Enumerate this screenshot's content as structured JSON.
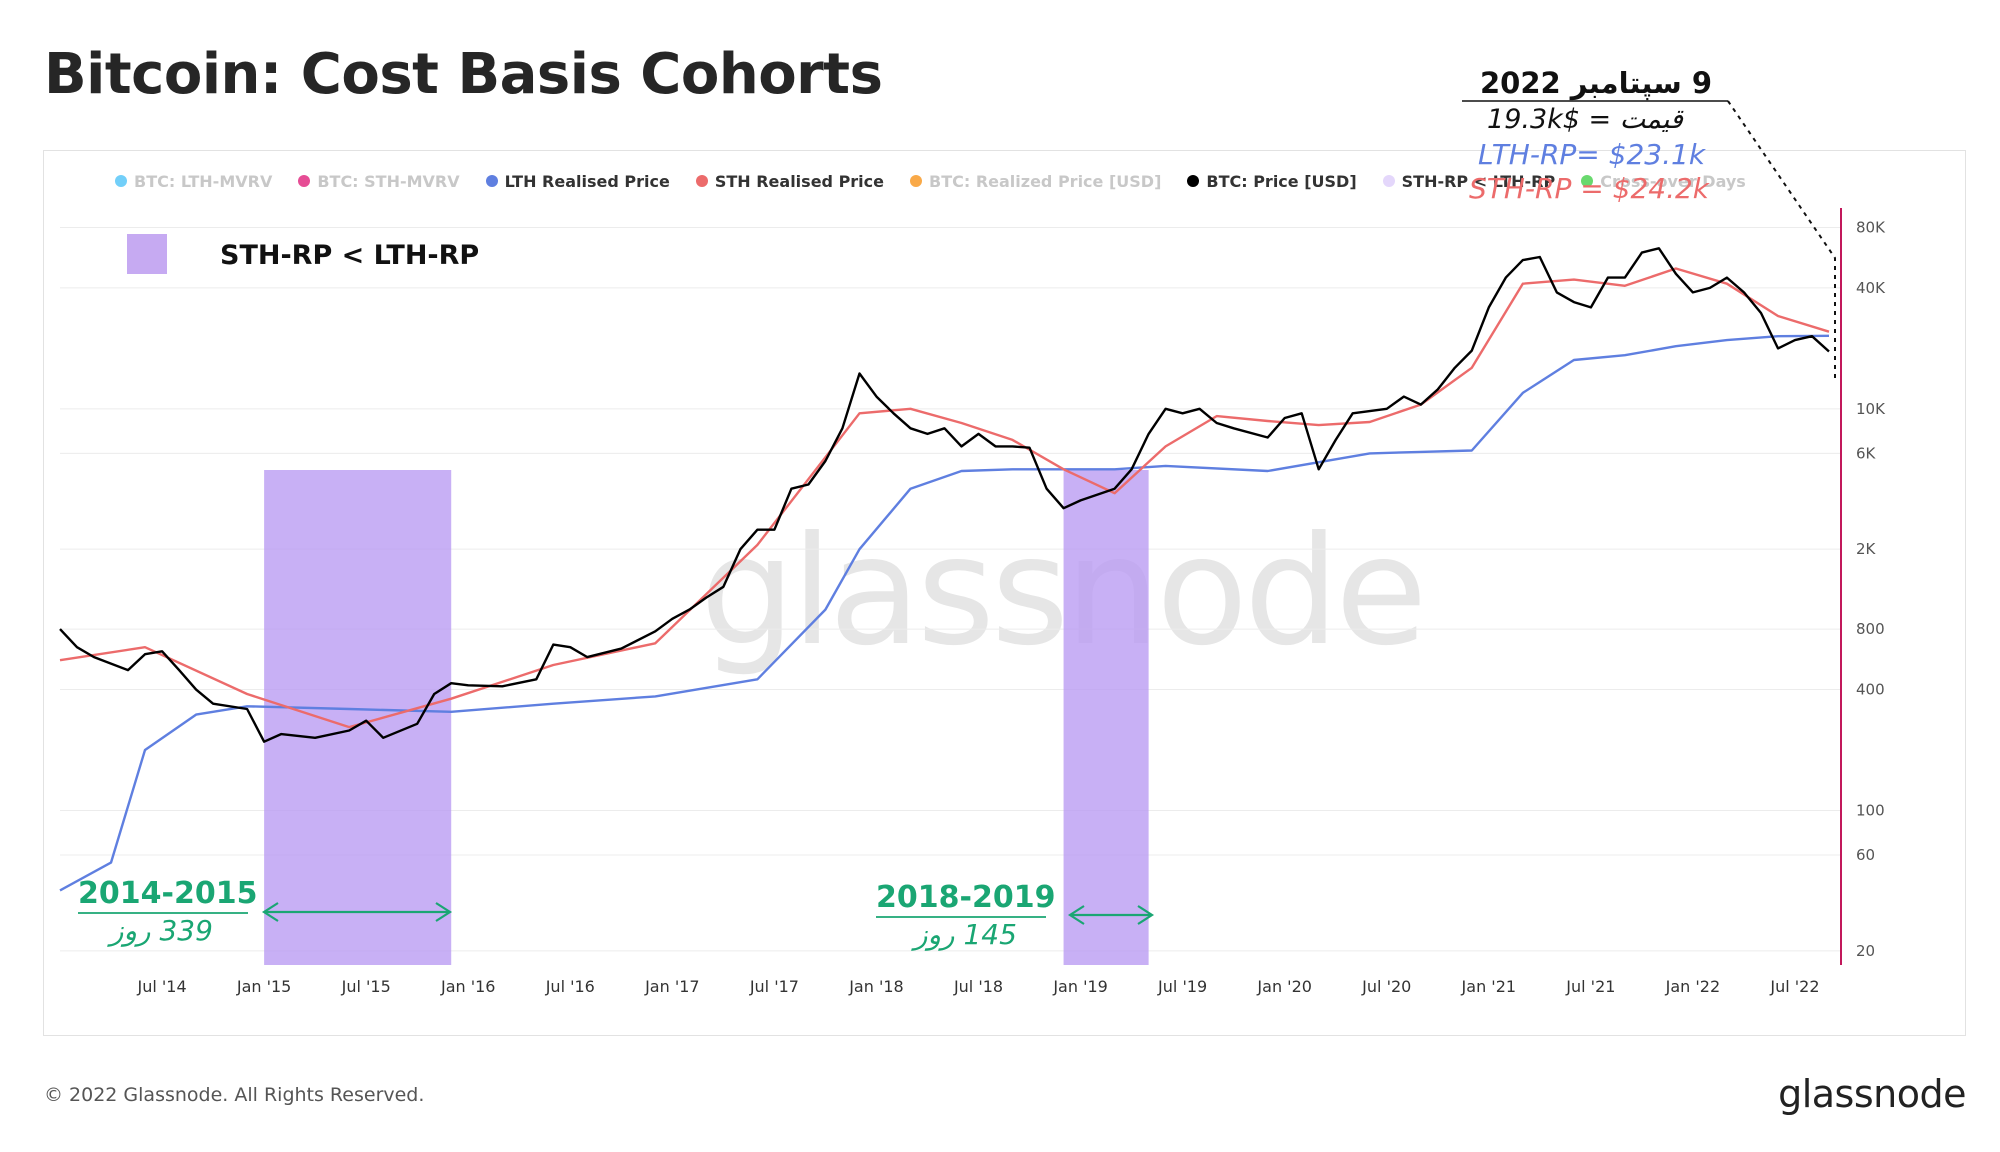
{
  "title": "Bitcoin: Cost Basis Cohorts",
  "legend": [
    {
      "label": "BTC: LTH-MVRV",
      "color": "#4fc3f7",
      "faded": true
    },
    {
      "label": "BTC: STH-MVRV",
      "color": "#e0207a",
      "faded": true
    },
    {
      "label": "LTH Realised Price",
      "color": "#5f7fe0",
      "faded": false
    },
    {
      "label": "STH Realised Price",
      "color": "#ec6b6b",
      "faded": false
    },
    {
      "label": "BTC: Realized Price [USD]",
      "color": "#f7931a",
      "faded": true
    },
    {
      "label": "BTC: Price [USD]",
      "color": "#000000",
      "faded": false
    },
    {
      "label": "STH-RP < LTH-RP",
      "color": "#e4d7fb",
      "faded": false
    },
    {
      "label": "Cross-over Days",
      "color": "#44d04a",
      "faded": true
    }
  ],
  "inline_legend_label": "STH-RP < LTH-RP",
  "annotations": {
    "date_label": "9 سپتامبر 2022",
    "price_label": "قیمت = $19.3k",
    "lth_label": "LTH-RP= $23.1k",
    "sth_label": "STH-RP = $24.2k",
    "period1_title": "2014-2015",
    "period1_days": "339 روز",
    "period2_title": "2018-2019",
    "period2_days": "145 روز"
  },
  "watermark": "glassnode",
  "footer": "© 2022 Glassnode. All Rights Reserved.",
  "brand": "glassnode",
  "colors": {
    "price": "#000000",
    "lth": "#5f7fe0",
    "sth": "#ec6b6b",
    "shade": "#b99af2",
    "period_text": "#1aa673",
    "right_axis": "#c2185b"
  },
  "chart_data": {
    "type": "line",
    "yscale": "log",
    "ylim": [
      17,
      100000
    ],
    "y_ticks": [
      20,
      60,
      100,
      400,
      800,
      2000,
      6000,
      10000,
      40000,
      80000
    ],
    "y_tick_labels": [
      "20",
      "60",
      "100",
      "400",
      "800",
      "2K",
      "6K",
      "10K",
      "40K",
      "80K"
    ],
    "x_range": [
      "2014-01",
      "2022-09"
    ],
    "x_ticks": [
      "2014-07",
      "2015-01",
      "2015-07",
      "2016-01",
      "2016-07",
      "2017-01",
      "2017-07",
      "2018-01",
      "2018-07",
      "2019-01",
      "2019-07",
      "2020-01",
      "2020-07",
      "2021-01",
      "2021-07",
      "2022-01",
      "2022-07"
    ],
    "x_tick_labels": [
      "Jul '14",
      "Jan '15",
      "Jul '15",
      "Jan '16",
      "Jul '16",
      "Jan '17",
      "Jul '17",
      "Jan '18",
      "Jul '18",
      "Jan '19",
      "Jul '19",
      "Jan '20",
      "Jul '20",
      "Jan '21",
      "Jul '21",
      "Jan '22",
      "Jul '22"
    ],
    "shaded_periods": [
      {
        "start": "2015-01",
        "end": "2015-12"
      },
      {
        "start": "2018-12",
        "end": "2019-05"
      }
    ],
    "series": [
      {
        "name": "BTC: Price [USD]",
        "x": [
          "2014-01",
          "2014-02",
          "2014-03",
          "2014-05",
          "2014-06",
          "2014-07",
          "2014-08",
          "2014-09",
          "2014-10",
          "2014-12",
          "2015-01",
          "2015-02",
          "2015-04",
          "2015-06",
          "2015-07",
          "2015-08",
          "2015-10",
          "2015-11",
          "2015-12",
          "2016-01",
          "2016-03",
          "2016-05",
          "2016-06",
          "2016-07",
          "2016-08",
          "2016-10",
          "2016-12",
          "2017-01",
          "2017-02",
          "2017-03",
          "2017-04",
          "2017-05",
          "2017-06",
          "2017-07",
          "2017-08",
          "2017-09",
          "2017-10",
          "2017-11",
          "2017-12",
          "2018-01",
          "2018-02",
          "2018-03",
          "2018-04",
          "2018-05",
          "2018-06",
          "2018-07",
          "2018-08",
          "2018-09",
          "2018-10",
          "2018-11",
          "2018-12",
          "2019-01",
          "2019-03",
          "2019-04",
          "2019-05",
          "2019-06",
          "2019-07",
          "2019-08",
          "2019-09",
          "2019-10",
          "2019-12",
          "2020-01",
          "2020-02",
          "2020-03",
          "2020-04",
          "2020-05",
          "2020-07",
          "2020-08",
          "2020-09",
          "2020-10",
          "2020-11",
          "2020-12",
          "2021-01",
          "2021-02",
          "2021-03",
          "2021-04",
          "2021-05",
          "2021-06",
          "2021-07",
          "2021-08",
          "2021-09",
          "2021-10",
          "2021-11",
          "2021-12",
          "2022-01",
          "2022-02",
          "2022-03",
          "2022-04",
          "2022-05",
          "2022-06",
          "2022-07",
          "2022-08",
          "2022-09"
        ],
        "values": [
          800,
          650,
          580,
          500,
          600,
          620,
          500,
          400,
          340,
          320,
          220,
          240,
          230,
          250,
          280,
          230,
          270,
          380,
          430,
          420,
          415,
          450,
          670,
          650,
          580,
          640,
          780,
          900,
          1000,
          1150,
          1300,
          2000,
          2500,
          2500,
          4000,
          4200,
          5500,
          8000,
          15000,
          11500,
          9500,
          8000,
          7500,
          8000,
          6500,
          7500,
          6500,
          6500,
          6400,
          4000,
          3200,
          3500,
          4000,
          5000,
          7500,
          10000,
          9500,
          10000,
          8500,
          8000,
          7200,
          9000,
          9500,
          5000,
          7000,
          9500,
          10000,
          11500,
          10500,
          12500,
          16000,
          19500,
          32000,
          45000,
          55000,
          57000,
          38000,
          34000,
          32000,
          45000,
          45000,
          60000,
          63000,
          47000,
          38000,
          40000,
          45000,
          38000,
          30000,
          20000,
          22000,
          23000,
          19300
        ]
      },
      {
        "name": "STH Realised Price",
        "x": [
          "2014-01",
          "2014-06",
          "2014-12",
          "2015-06",
          "2015-12",
          "2016-06",
          "2016-12",
          "2017-06",
          "2017-12",
          "2018-03",
          "2018-06",
          "2018-09",
          "2018-12",
          "2019-03",
          "2019-06",
          "2019-09",
          "2019-12",
          "2020-03",
          "2020-06",
          "2020-09",
          "2020-12",
          "2021-03",
          "2021-06",
          "2021-09",
          "2021-12",
          "2022-03",
          "2022-06",
          "2022-09"
        ],
        "values": [
          560,
          650,
          380,
          260,
          360,
          530,
          680,
          2100,
          9500,
          10000,
          8500,
          7000,
          5000,
          3800,
          6500,
          9200,
          8700,
          8300,
          8600,
          10500,
          16000,
          42000,
          44000,
          41000,
          50000,
          42000,
          29000,
          24200
        ]
      },
      {
        "name": "LTH Realised Price",
        "x": [
          "2014-01",
          "2014-04",
          "2014-06",
          "2014-09",
          "2014-12",
          "2015-06",
          "2015-12",
          "2016-06",
          "2016-12",
          "2017-06",
          "2017-10",
          "2017-12",
          "2018-03",
          "2018-06",
          "2018-09",
          "2018-12",
          "2019-03",
          "2019-06",
          "2019-12",
          "2020-06",
          "2020-09",
          "2020-12",
          "2021-03",
          "2021-06",
          "2021-09",
          "2021-12",
          "2022-03",
          "2022-06",
          "2022-09"
        ],
        "values": [
          40,
          55,
          200,
          300,
          330,
          320,
          310,
          340,
          370,
          450,
          1000,
          2000,
          4000,
          4900,
          5000,
          5000,
          5000,
          5200,
          4900,
          6000,
          6100,
          6200,
          12000,
          17500,
          18500,
          20500,
          22000,
          23000,
          23100
        ]
      }
    ]
  }
}
